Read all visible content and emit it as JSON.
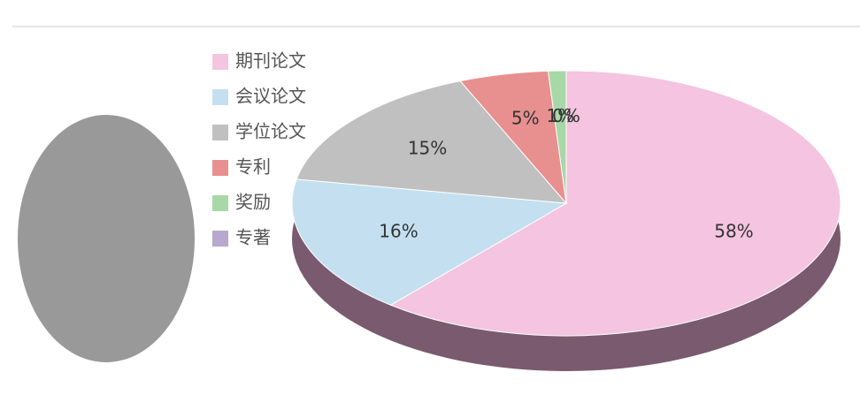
{
  "chart_data": {
    "type": "pie",
    "categories": [
      "期刊论文",
      "会议论文",
      "学位论文",
      "专利",
      "奖励",
      "专著"
    ],
    "values": [
      58,
      16,
      15,
      5,
      1,
      0
    ],
    "value_labels": [
      "58%",
      "16%",
      "15%",
      "5%",
      "1%",
      "0%"
    ],
    "colors": [
      "#f4c4e0",
      "#c4e0f0",
      "#c0c0c0",
      "#e89090",
      "#a8d8a8",
      "#b8a8d0"
    ],
    "legend": "left"
  }
}
